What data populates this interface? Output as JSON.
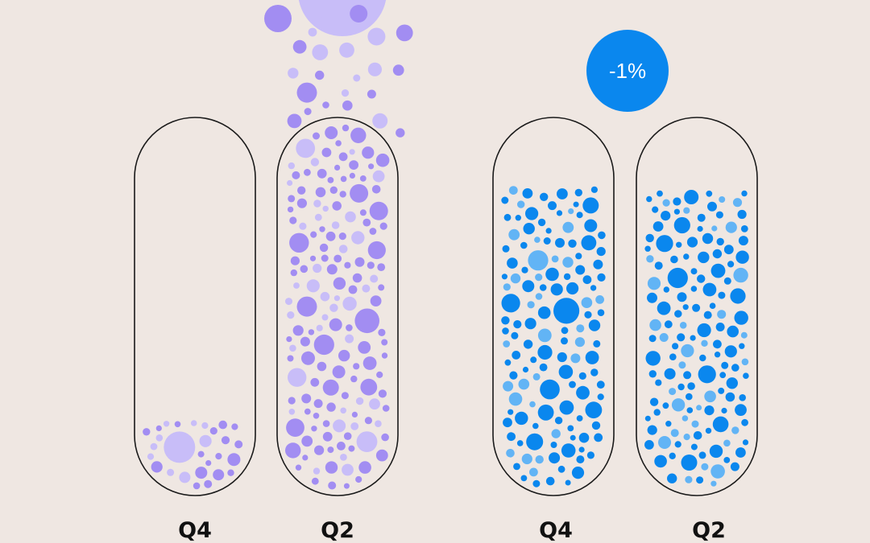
{
  "chart_data": {
    "type": "bubble-fill",
    "title": "",
    "groups": [
      {
        "name": "",
        "color_primary": "#a28df2",
        "color_light": "#c8bdf8",
        "change_label": "",
        "categories": [
          "Q4",
          "Q2"
        ],
        "fill_levels": [
          0.2,
          1.15
        ]
      },
      {
        "name": "",
        "color_primary": "#0a87ee",
        "color_light": "#62b4f5",
        "change_label": "-1%",
        "categories": [
          "Q4",
          "Q2"
        ],
        "fill_levels": [
          0.82,
          0.81
        ]
      }
    ]
  },
  "colors": {
    "background": "#efe7e2",
    "outline": "#1a1a1a",
    "label": "#111111"
  }
}
